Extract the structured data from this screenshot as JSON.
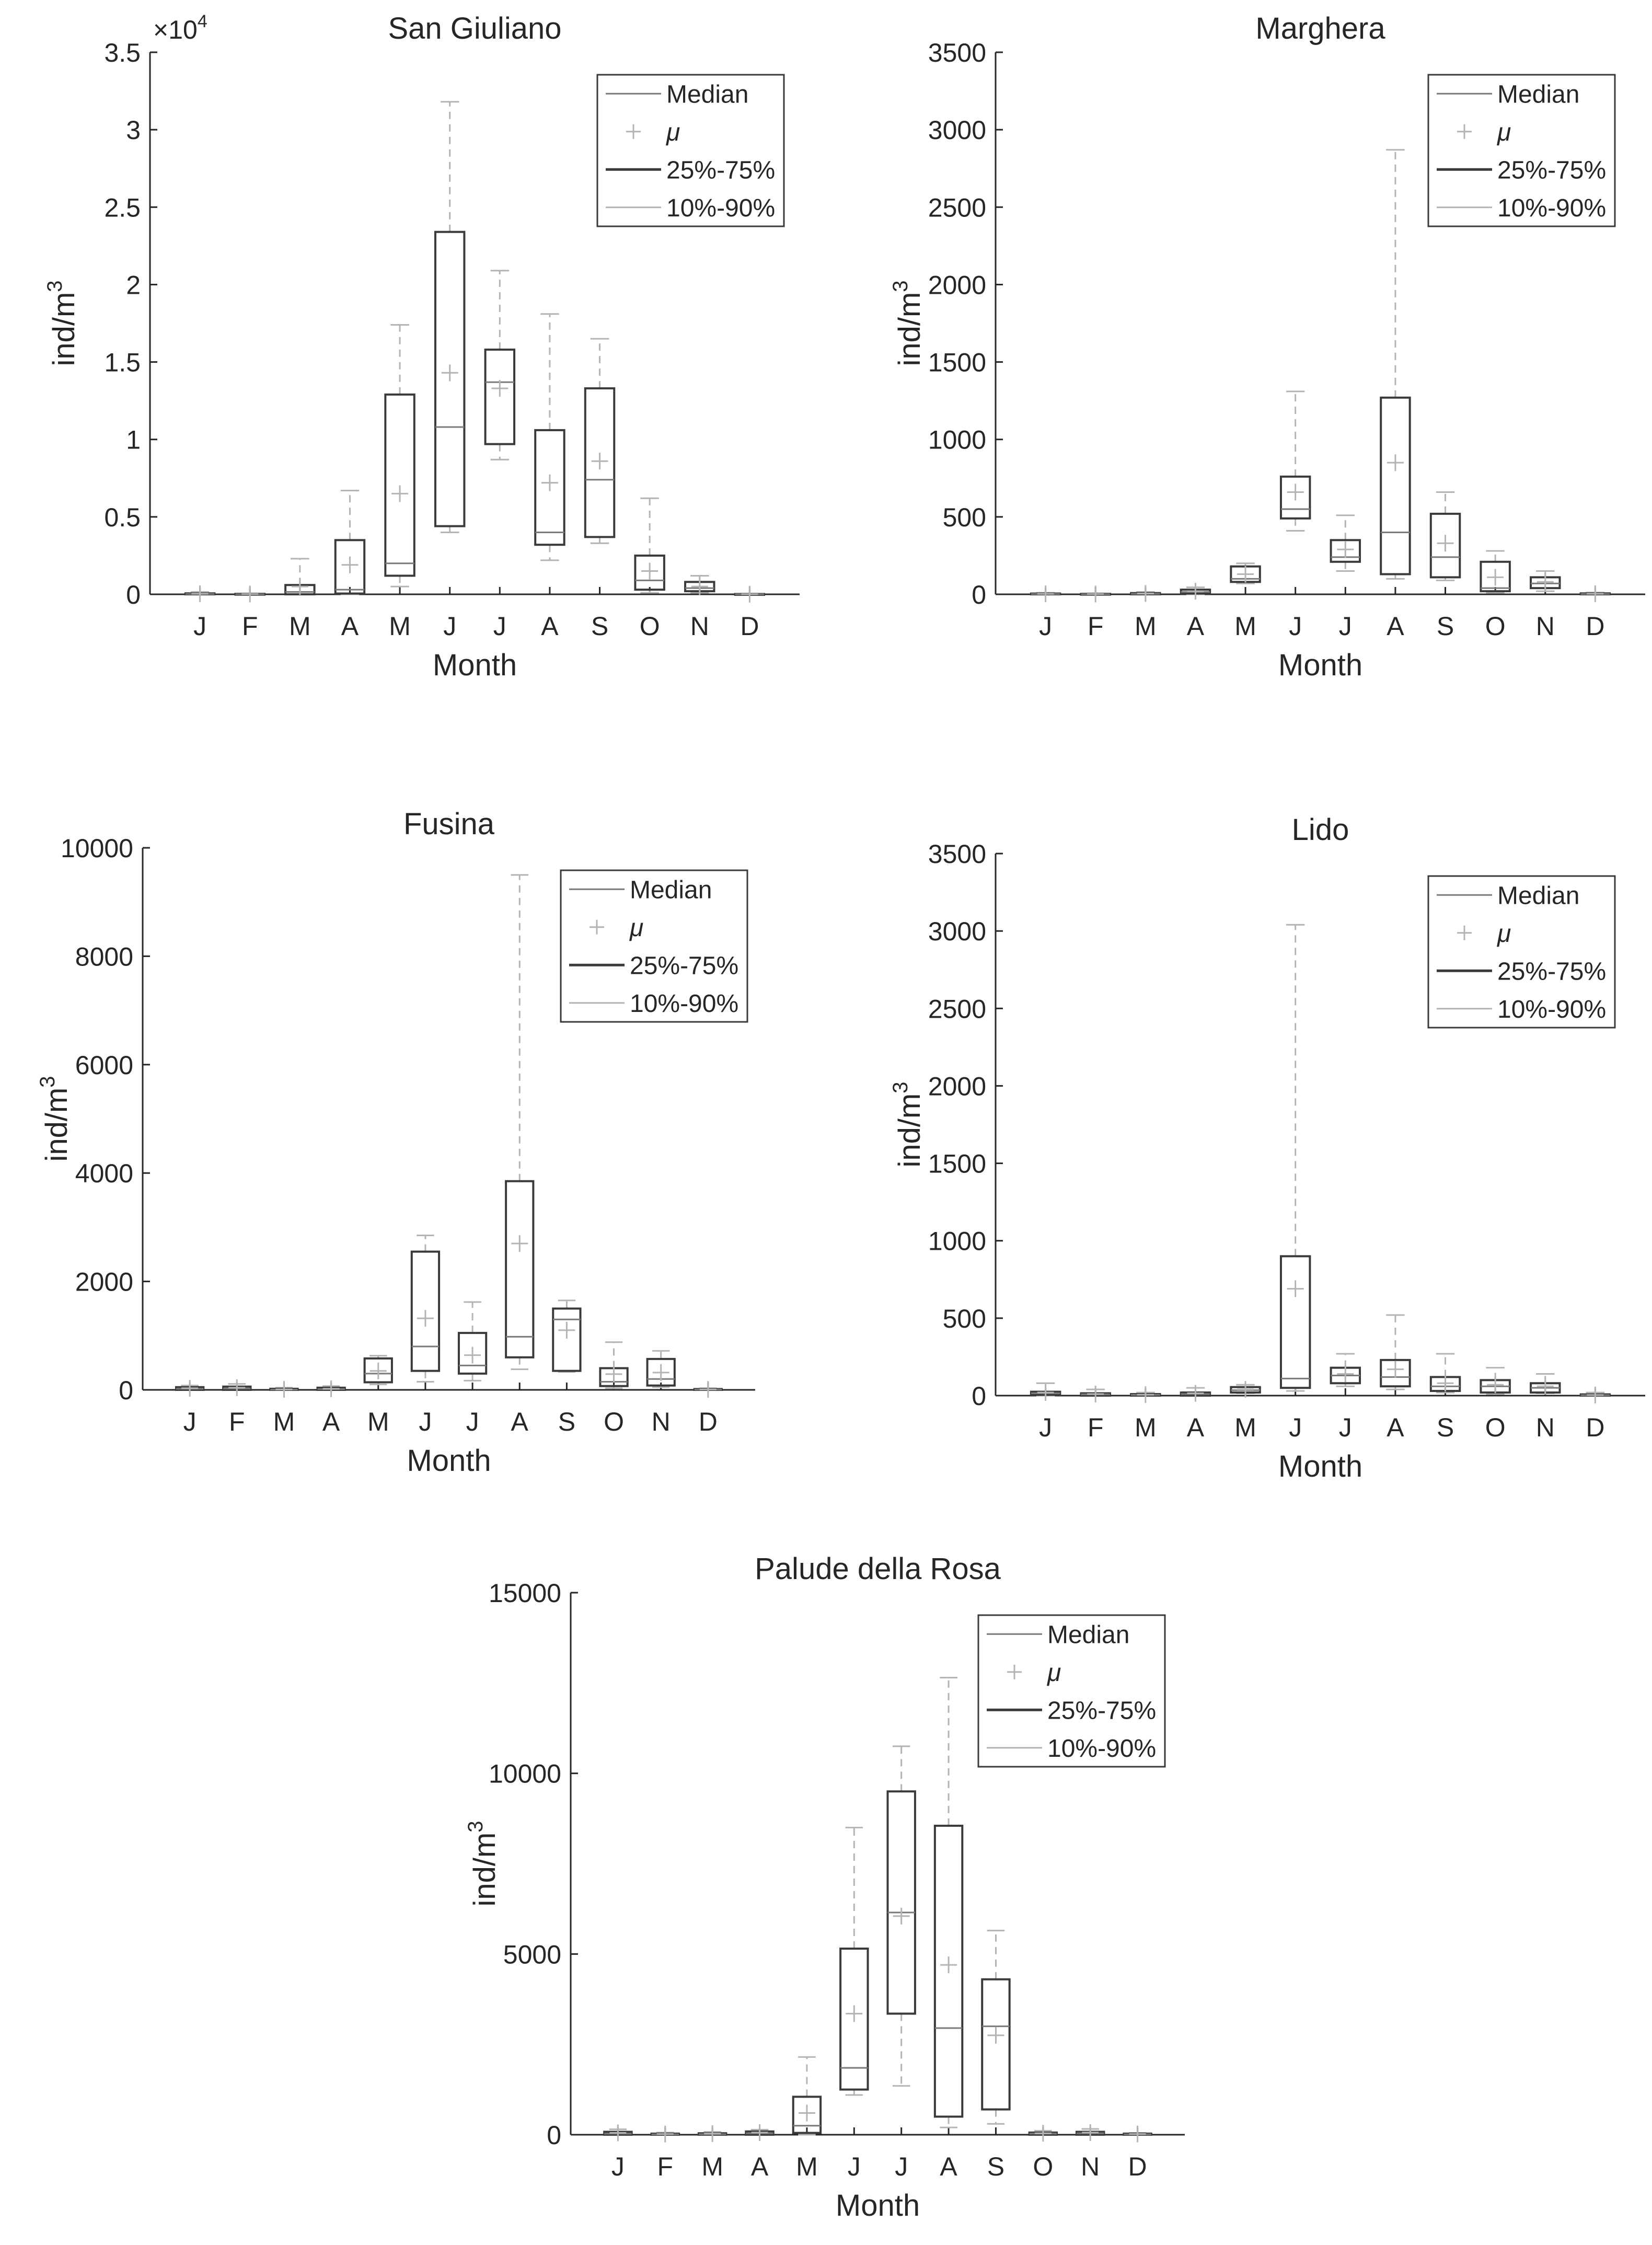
{
  "chart_data": [
    {
      "type": "box",
      "title": "San Giuliano",
      "xlabel": "Month",
      "ylabel": "ind/m",
      "ylabel_sup": "3",
      "exponent_label": "×10",
      "exponent_sup": "4",
      "ylim": [
        0,
        35000
      ],
      "yticks": [
        0,
        5000,
        10000,
        15000,
        20000,
        25000,
        30000,
        35000
      ],
      "ytick_labels": [
        "0",
        "0.5",
        "1",
        "1.5",
        "2",
        "2.5",
        "3",
        "3.5"
      ],
      "categories": [
        "J",
        "F",
        "M",
        "A",
        "M",
        "J",
        "J",
        "A",
        "S",
        "O",
        "N",
        "D"
      ],
      "q1": [
        0,
        0,
        0,
        50,
        1200,
        4400,
        9700,
        3200,
        3700,
        300,
        200,
        0
      ],
      "median": [
        20,
        10,
        150,
        300,
        2000,
        10800,
        13700,
        4000,
        7400,
        900,
        400,
        5
      ],
      "q3": [
        60,
        30,
        600,
        3500,
        12900,
        23400,
        15800,
        10600,
        13300,
        2500,
        800,
        20
      ],
      "p10": [
        0,
        0,
        0,
        0,
        500,
        4000,
        8700,
        2200,
        3300,
        100,
        100,
        0
      ],
      "p90": [
        150,
        50,
        2300,
        6700,
        17400,
        31800,
        20900,
        18100,
        16500,
        6200,
        1200,
        40
      ],
      "mean": [
        40,
        20,
        500,
        1900,
        6500,
        14300,
        13300,
        7200,
        8600,
        1500,
        500,
        10
      ]
    },
    {
      "type": "box",
      "title": "Marghera",
      "xlabel": "Month",
      "ylabel": "ind/m",
      "ylabel_sup": "3",
      "ylim": [
        0,
        3500
      ],
      "yticks": [
        0,
        500,
        1000,
        1500,
        2000,
        2500,
        3000,
        3500
      ],
      "ytick_labels": [
        "0",
        "500",
        "1000",
        "1500",
        "2000",
        "2500",
        "3000",
        "3500"
      ],
      "categories": [
        "J",
        "F",
        "M",
        "A",
        "M",
        "J",
        "J",
        "A",
        "S",
        "O",
        "N",
        "D"
      ],
      "q1": [
        0,
        0,
        0,
        5,
        80,
        490,
        210,
        130,
        110,
        20,
        40,
        0
      ],
      "median": [
        2,
        1,
        3,
        15,
        100,
        550,
        240,
        400,
        240,
        40,
        70,
        2
      ],
      "q3": [
        5,
        3,
        8,
        30,
        180,
        760,
        350,
        1270,
        520,
        210,
        110,
        6
      ],
      "p10": [
        0,
        0,
        0,
        0,
        70,
        410,
        150,
        100,
        90,
        10,
        20,
        0
      ],
      "p90": [
        10,
        6,
        15,
        45,
        200,
        1310,
        510,
        2870,
        660,
        280,
        150,
        12
      ],
      "mean": [
        3,
        2,
        5,
        20,
        130,
        660,
        290,
        850,
        330,
        110,
        80,
        4
      ]
    },
    {
      "type": "box",
      "title": "Fusina",
      "xlabel": "Month",
      "ylabel": "ind/m",
      "ylabel_sup": "3",
      "ylim": [
        0,
        10000
      ],
      "yticks": [
        0,
        2000,
        4000,
        6000,
        8000,
        10000
      ],
      "ytick_labels": [
        "0",
        "2000",
        "4000",
        "6000",
        "8000",
        "10000"
      ],
      "categories": [
        "J",
        "F",
        "M",
        "A",
        "M",
        "J",
        "J",
        "A",
        "S",
        "O",
        "N",
        "D"
      ],
      "q1": [
        0,
        0,
        0,
        0,
        140,
        350,
        300,
        600,
        350,
        70,
        80,
        0
      ],
      "median": [
        20,
        25,
        5,
        15,
        300,
        800,
        450,
        980,
        1300,
        150,
        200,
        5
      ],
      "q3": [
        50,
        60,
        20,
        40,
        580,
        2550,
        1050,
        3850,
        1500,
        400,
        570,
        15
      ],
      "p10": [
        0,
        0,
        0,
        0,
        100,
        150,
        170,
        380,
        330,
        30,
        50,
        0
      ],
      "p90": [
        80,
        110,
        40,
        70,
        630,
        2850,
        1620,
        9500,
        1650,
        880,
        720,
        30
      ],
      "mean": [
        30,
        40,
        10,
        20,
        350,
        1320,
        640,
        2700,
        1100,
        290,
        320,
        8
      ]
    },
    {
      "type": "box",
      "title": "Lido",
      "xlabel": "Month",
      "ylabel": "ind/m",
      "ylabel_sup": "3",
      "ylim": [
        0,
        3500
      ],
      "yticks": [
        0,
        500,
        1000,
        1500,
        2000,
        2500,
        3000,
        3500
      ],
      "ytick_labels": [
        "0",
        "500",
        "1000",
        "1500",
        "2000",
        "2500",
        "3000",
        "3500"
      ],
      "categories": [
        "J",
        "F",
        "M",
        "A",
        "M",
        "J",
        "J",
        "A",
        "S",
        "O",
        "N",
        "D"
      ],
      "q1": [
        5,
        0,
        0,
        0,
        20,
        50,
        80,
        60,
        30,
        20,
        20,
        0
      ],
      "median": [
        15,
        8,
        5,
        10,
        35,
        110,
        130,
        120,
        60,
        60,
        50,
        3
      ],
      "q3": [
        25,
        15,
        10,
        20,
        55,
        900,
        180,
        230,
        120,
        100,
        80,
        8
      ],
      "p10": [
        0,
        0,
        0,
        0,
        15,
        30,
        60,
        40,
        20,
        10,
        15,
        0
      ],
      "p90": [
        80,
        40,
        20,
        50,
        70,
        3040,
        270,
        520,
        270,
        180,
        140,
        20
      ],
      "mean": [
        20,
        10,
        6,
        15,
        40,
        690,
        140,
        170,
        80,
        70,
        60,
        4
      ]
    },
    {
      "type": "box",
      "title": "Palude della Rosa",
      "xlabel": "Month",
      "ylabel": "ind/m",
      "ylabel_sup": "3",
      "ylim": [
        0,
        15000
      ],
      "yticks": [
        0,
        5000,
        10000,
        15000
      ],
      "ytick_labels": [
        "0",
        "5000",
        "10000",
        "15000"
      ],
      "categories": [
        "J",
        "F",
        "M",
        "A",
        "M",
        "J",
        "J",
        "A",
        "S",
        "O",
        "N",
        "D"
      ],
      "q1": [
        0,
        0,
        0,
        0,
        50,
        1250,
        3350,
        500,
        700,
        0,
        0,
        0
      ],
      "median": [
        30,
        10,
        15,
        40,
        250,
        1850,
        6150,
        2950,
        3000,
        30,
        40,
        10
      ],
      "q3": [
        80,
        30,
        40,
        90,
        1050,
        5150,
        9500,
        8550,
        4300,
        60,
        80,
        30
      ],
      "p10": [
        0,
        0,
        0,
        0,
        0,
        1100,
        1350,
        200,
        300,
        0,
        0,
        0
      ],
      "p90": [
        150,
        60,
        80,
        140,
        2150,
        8500,
        10750,
        12650,
        5650,
        110,
        160,
        50
      ],
      "mean": [
        50,
        20,
        30,
        60,
        600,
        3350,
        6050,
        4700,
        2750,
        40,
        60,
        20
      ]
    }
  ],
  "legend": {
    "median": "Median",
    "mu": "μ",
    "iqr": "25%-75%",
    "p10_90": "10%-90%"
  },
  "colors": {
    "box": "#3a3a3a",
    "median": "#7a7a7a",
    "whisker": "#b4b4b4",
    "mean": "#b4b4b4",
    "axis": "#262626",
    "legend_box": "#3a3a3a"
  }
}
